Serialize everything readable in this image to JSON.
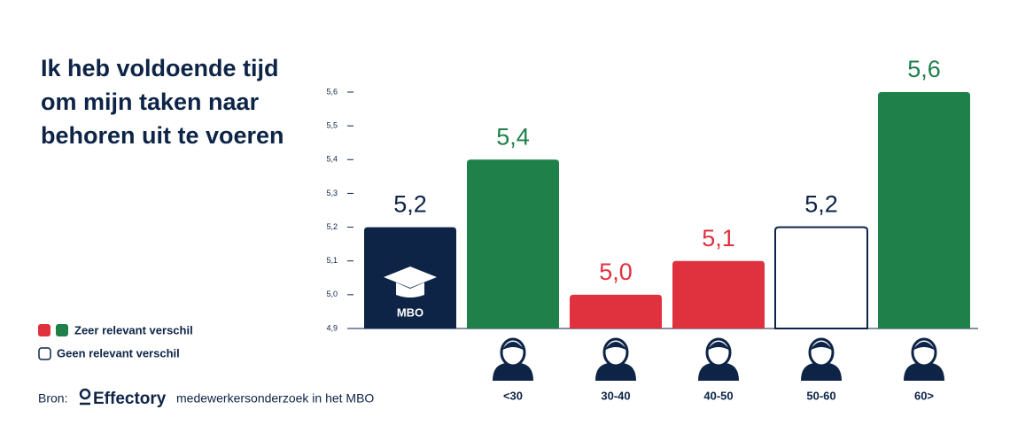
{
  "chart_data": {
    "type": "bar",
    "title": "Ik heb voldoende tijd om mijn taken naar behoren uit te voeren",
    "categories": [
      "MBO",
      "<30",
      "30-40",
      "40-50",
      "50-60",
      "60>"
    ],
    "values": [
      5.2,
      5.4,
      5.0,
      5.1,
      5.2,
      5.6
    ],
    "value_labels": [
      "5,2",
      "5,4",
      "5,0",
      "5,1",
      "5,2",
      "5,6"
    ],
    "colors": [
      "#0d2447",
      "#1f8049",
      "#e0313f",
      "#e0313f",
      "#ffffff",
      "#1f8049"
    ],
    "label_colors": [
      "#0d2447",
      "#1f8049",
      "#e0313f",
      "#e0313f",
      "#0d2447",
      "#1f8049"
    ],
    "edge_color": "#0d2447",
    "ylim": [
      4.9,
      5.6
    ],
    "yticks": [
      {
        "value": 4.9,
        "label": "4,9"
      },
      {
        "value": 5.0,
        "label": "5,0"
      },
      {
        "value": 5.1,
        "label": "5,1"
      },
      {
        "value": 5.2,
        "label": "5,2"
      },
      {
        "value": 5.3,
        "label": "5,3"
      },
      {
        "value": 5.4,
        "label": "5,4"
      },
      {
        "value": 5.5,
        "label": "5,5"
      },
      {
        "value": 5.6,
        "label": "5,6"
      }
    ],
    "legend": [
      "Zeer relevant verschil",
      "Geen relevant verschil"
    ],
    "source_prefix": "Bron:",
    "source_brand": "Effectory",
    "source_text": "medewerkersonderzoek in het MBO"
  }
}
